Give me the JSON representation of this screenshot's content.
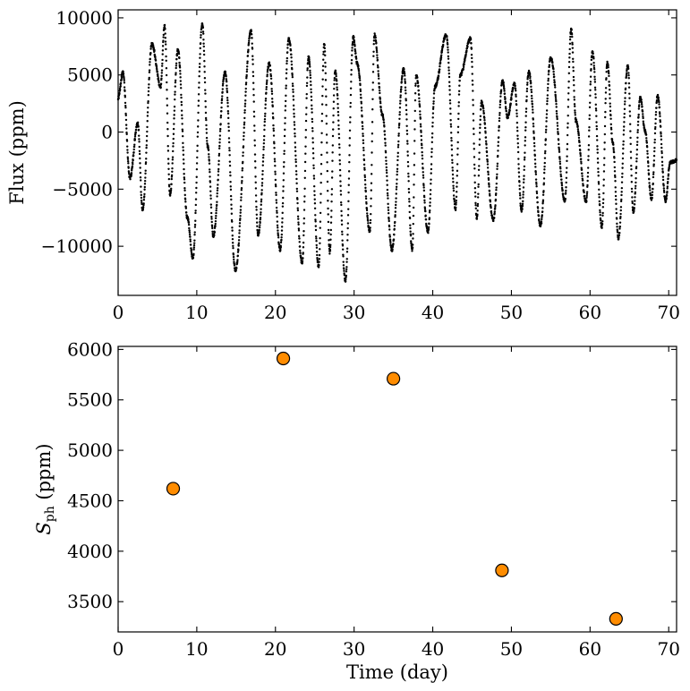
{
  "chart_data": [
    {
      "type": "scatter",
      "xlabel": "",
      "ylabel": "Flux (ppm)",
      "xlim": [
        0,
        71
      ],
      "ylim": [
        -14300,
        10700
      ],
      "xticks": [
        0,
        10,
        20,
        30,
        40,
        50,
        60,
        70
      ],
      "yticks": [
        -10000,
        -5000,
        0,
        5000,
        10000
      ],
      "ytick_labels": [
        "−10000",
        "−5000",
        "0",
        "5000",
        "10000"
      ],
      "marker_color": "#000000",
      "cadence_day": 0.0208,
      "series": [
        {
          "envelope_x": [
            0.0,
            0.6,
            1.5,
            2.5,
            3.1,
            4.3,
            5.4,
            5.9,
            6.6,
            7.6,
            8.8,
            9.5,
            10.7,
            11.4,
            12.1,
            13.6,
            14.9,
            16.9,
            17.8,
            19.2,
            20.6,
            21.7,
            23.4,
            24.2,
            25.5,
            26.2,
            26.9,
            27.6,
            28.9,
            29.9,
            30.4,
            32.0,
            32.6,
            33.6,
            34.8,
            36.3,
            37.4,
            37.9,
            39.4,
            40.3,
            41.7,
            42.9,
            43.5,
            44.8,
            45.6,
            46.2,
            47.7,
            48.9,
            49.5,
            50.4,
            51.3,
            52.2,
            53.7,
            55.0,
            56.8,
            57.6,
            58.2,
            59.5,
            60.3,
            61.5,
            62.2,
            62.9,
            63.6,
            64.8,
            65.5,
            66.4,
            67.0,
            67.8,
            68.6,
            69.6,
            70.2,
            71.0
          ],
          "envelope_y": [
            3000,
            5200,
            -4000,
            800,
            -6800,
            7700,
            4000,
            9300,
            -5500,
            7200,
            -7500,
            -11000,
            9500,
            -1300,
            -9100,
            5200,
            -12100,
            8800,
            -9000,
            6000,
            -10300,
            8200,
            -11500,
            6500,
            -11800,
            7700,
            -10500,
            5300,
            -13000,
            8300,
            6000,
            -8700,
            8500,
            1500,
            -10300,
            5500,
            -10300,
            5000,
            -8700,
            4000,
            8500,
            -6700,
            5000,
            8200,
            -7500,
            2600,
            -7700,
            4500,
            1300,
            4200,
            -6900,
            5300,
            -8200,
            6500,
            -6000,
            9000,
            1000,
            -6100,
            7000,
            -8300,
            6100,
            -1000,
            -9300,
            5800,
            -7000,
            3000,
            100,
            -5900,
            3200,
            -6000,
            -2600,
            -2500
          ]
        }
      ]
    },
    {
      "type": "scatter",
      "xlabel": "Time (day)",
      "ylabel": "S_ph (ppm)",
      "ylabel_symbol": "S",
      "ylabel_subscript": "ph",
      "ylabel_unit": "(ppm)",
      "xlim": [
        0,
        71
      ],
      "ylim": [
        3200,
        6030
      ],
      "xticks": [
        0,
        10,
        20,
        30,
        40,
        50,
        60,
        70
      ],
      "yticks": [
        3500,
        4000,
        4500,
        5000,
        5500,
        6000
      ],
      "marker_color": "#ff8c00",
      "marker_edge": "#000000",
      "series": [
        {
          "x": [
            7.0,
            21.0,
            35.0,
            48.8,
            63.3
          ],
          "y": [
            4620,
            5910,
            5710,
            3810,
            3330
          ]
        }
      ]
    }
  ]
}
